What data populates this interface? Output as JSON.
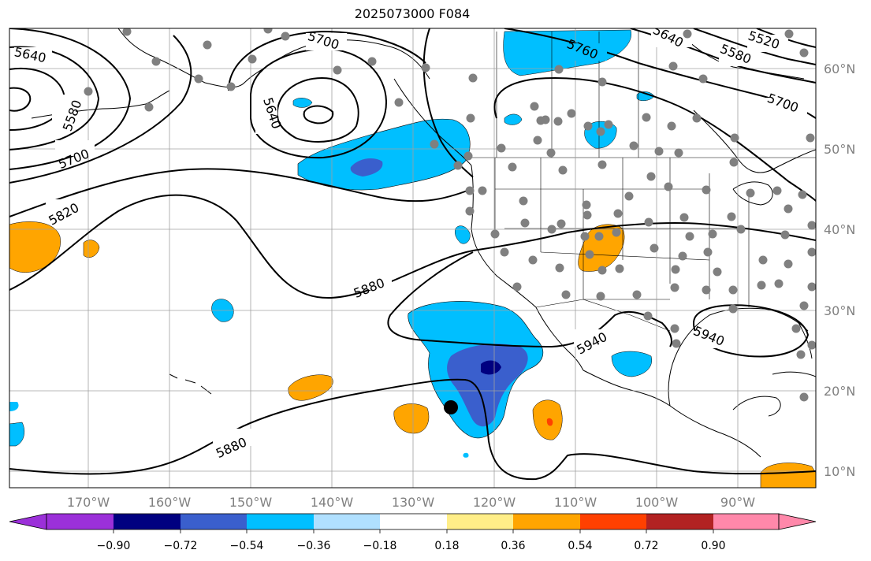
{
  "title": "2025073000 F084",
  "map": {
    "lon_labels": [
      "170°W",
      "160°W",
      "150°W",
      "140°W",
      "130°W",
      "120°W",
      "110°W",
      "100°W",
      "90°W"
    ],
    "lat_labels": [
      "60°N",
      "50°N",
      "40°N",
      "30°N",
      "20°N",
      "10°N"
    ],
    "contour_labels": [
      "5640",
      "5580",
      "5700",
      "5820",
      "5700",
      "5640",
      "5760",
      "5640",
      "5580",
      "5520",
      "5700",
      "5880",
      "5940",
      "5940",
      "5880"
    ],
    "colors": {
      "contour": "#000000",
      "coast": "#000000",
      "grid": "#a0a0a0",
      "station_dot": "#808080",
      "marker": "#000000"
    }
  },
  "colorbar": {
    "ticks": [
      "−0.90",
      "−0.72",
      "−0.54",
      "−0.36",
      "−0.18",
      "0.18",
      "0.36",
      "0.54",
      "0.72",
      "0.90"
    ],
    "colors": [
      "#9b30d9",
      "#000080",
      "#3a5fcd",
      "#00bfff",
      "#b0e0ff",
      "#ffffff",
      "#ffee88",
      "#ffa500",
      "#ff4000",
      "#b22222",
      "#ff88aa"
    ],
    "extend": "both"
  }
}
